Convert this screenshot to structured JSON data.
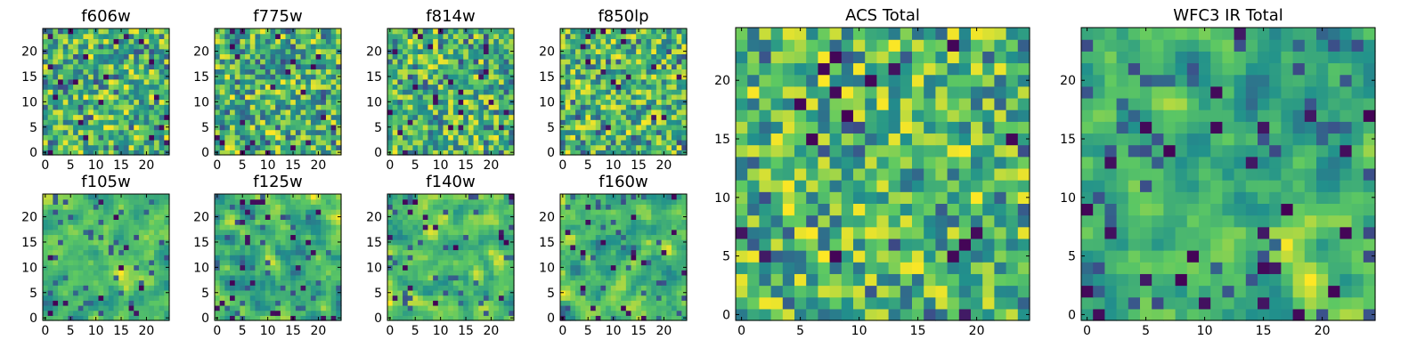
{
  "chart_data": [
    {
      "type": "heatmap",
      "title": "f606w",
      "grid_size": 25,
      "xticks": [
        0,
        5,
        10,
        15,
        20
      ],
      "yticks": [
        0,
        5,
        10,
        15,
        20
      ],
      "colormap": "viridis",
      "xlabel": "",
      "ylabel": ""
    },
    {
      "type": "heatmap",
      "title": "f775w",
      "grid_size": 25,
      "xticks": [
        0,
        5,
        10,
        15,
        20
      ],
      "yticks": [
        0,
        5,
        10,
        15,
        20
      ],
      "colormap": "viridis",
      "xlabel": "",
      "ylabel": ""
    },
    {
      "type": "heatmap",
      "title": "f814w",
      "grid_size": 25,
      "xticks": [
        0,
        5,
        10,
        15,
        20
      ],
      "yticks": [
        0,
        5,
        10,
        15,
        20
      ],
      "colormap": "viridis",
      "xlabel": "",
      "ylabel": ""
    },
    {
      "type": "heatmap",
      "title": "f850lp",
      "grid_size": 25,
      "xticks": [
        0,
        5,
        10,
        15,
        20
      ],
      "yticks": [
        0,
        5,
        10,
        15,
        20
      ],
      "colormap": "viridis",
      "xlabel": "",
      "ylabel": ""
    },
    {
      "type": "heatmap",
      "title": "f105w",
      "grid_size": 25,
      "xticks": [
        0,
        5,
        10,
        15,
        20
      ],
      "yticks": [
        0,
        5,
        10,
        15,
        20
      ],
      "colormap": "viridis",
      "xlabel": "",
      "ylabel": ""
    },
    {
      "type": "heatmap",
      "title": "f125w",
      "grid_size": 25,
      "xticks": [
        0,
        5,
        10,
        15,
        20
      ],
      "yticks": [
        0,
        5,
        10,
        15,
        20
      ],
      "colormap": "viridis",
      "xlabel": "",
      "ylabel": ""
    },
    {
      "type": "heatmap",
      "title": "f140w",
      "grid_size": 25,
      "xticks": [
        0,
        5,
        10,
        15,
        20
      ],
      "yticks": [
        0,
        5,
        10,
        15,
        20
      ],
      "colormap": "viridis",
      "xlabel": "",
      "ylabel": ""
    },
    {
      "type": "heatmap",
      "title": "f160w",
      "grid_size": 25,
      "xticks": [
        0,
        5,
        10,
        15,
        20
      ],
      "yticks": [
        0,
        5,
        10,
        15,
        20
      ],
      "colormap": "viridis",
      "xlabel": "",
      "ylabel": ""
    },
    {
      "type": "heatmap",
      "title": "ACS Total",
      "grid_size": 25,
      "xticks": [
        0,
        5,
        10,
        15,
        20
      ],
      "yticks": [
        0,
        5,
        10,
        15,
        20
      ],
      "colormap": "viridis",
      "xlabel": "",
      "ylabel": ""
    },
    {
      "type": "heatmap",
      "title": "WFC3 IR Total",
      "grid_size": 25,
      "xticks": [
        0,
        5,
        10,
        15,
        20
      ],
      "yticks": [
        0,
        5,
        10,
        15,
        20
      ],
      "colormap": "viridis",
      "xlabel": "",
      "ylabel": ""
    }
  ],
  "colors": {
    "viridis_stops": [
      "#440154",
      "#3b528b",
      "#21918c",
      "#5ec962",
      "#fde725"
    ]
  }
}
